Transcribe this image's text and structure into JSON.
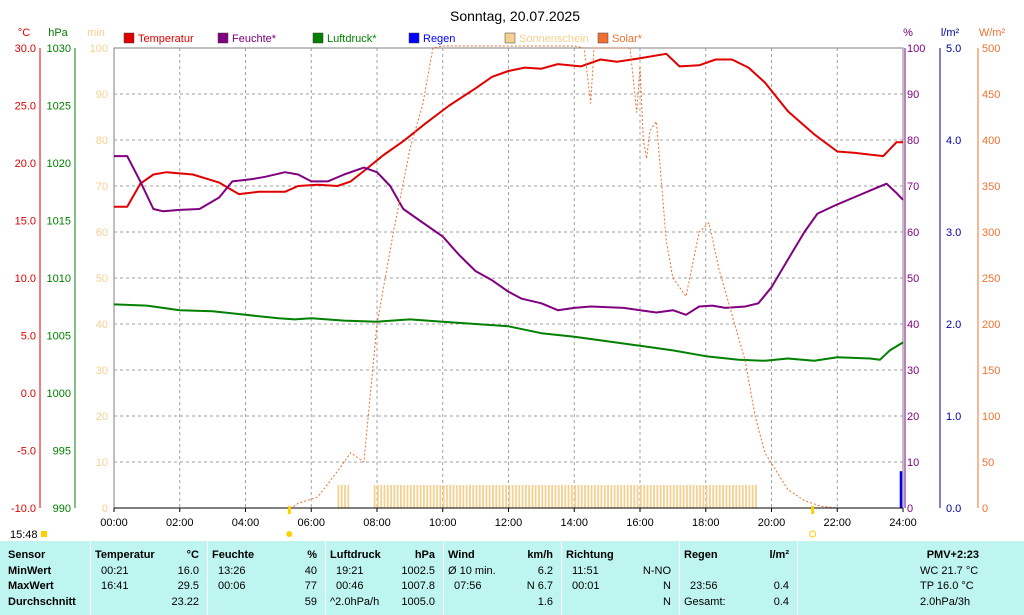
{
  "chart_data": {
    "type": "line",
    "title": "Sonntag, 20.07.2025",
    "x_ticks": [
      "00:00",
      "02:00",
      "04:00",
      "06:00",
      "08:00",
      "10:00",
      "12:00",
      "14:00",
      "16:00",
      "18:00",
      "20:00",
      "22:00",
      "24:00"
    ],
    "axes": {
      "temperature": {
        "unit": "°C",
        "range": [
          -10,
          30
        ],
        "ticks": [
          "30.0",
          "25.0",
          "20.0",
          "15.0",
          "10.0",
          "5.0",
          "0.0",
          "-5.0",
          "-10.0"
        ]
      },
      "pressure": {
        "unit": "hPa",
        "range": [
          990,
          1030
        ],
        "ticks": [
          "1030",
          "1025",
          "1020",
          "1015",
          "1010",
          "1005",
          "1000",
          "995",
          "990"
        ]
      },
      "sunshine": {
        "unit": "min",
        "range": [
          0,
          100
        ],
        "ticks": [
          "100",
          "90",
          "80",
          "70",
          "60",
          "50",
          "40",
          "30",
          "20",
          "10",
          "0"
        ]
      },
      "humidity": {
        "unit": "%",
        "range": [
          0,
          100
        ],
        "ticks": [
          "100",
          "90",
          "80",
          "70",
          "60",
          "50",
          "40",
          "30",
          "20",
          "10",
          "0"
        ]
      },
      "rain": {
        "unit": "l/m²",
        "range": [
          0,
          5
        ],
        "ticks": [
          "5.0",
          "4.0",
          "3.0",
          "2.0",
          "1.0",
          "0.0"
        ]
      },
      "solar": {
        "unit": "W/m²",
        "range": [
          0,
          500
        ],
        "ticks": [
          "500",
          "450",
          "400",
          "350",
          "300",
          "250",
          "200",
          "150",
          "100",
          "50",
          "0"
        ]
      }
    },
    "legend": [
      "Temperatur",
      "Feuchte*",
      "Luftdruck*",
      "Regen",
      "Sonnenschein",
      "Solar*"
    ],
    "series": [
      {
        "name": "Temperatur",
        "axis": "temperature",
        "color": "#e00000",
        "points": [
          [
            0,
            16.2
          ],
          [
            0.4,
            16.2
          ],
          [
            0.8,
            18.2
          ],
          [
            1.2,
            19.0
          ],
          [
            1.6,
            19.2
          ],
          [
            2.4,
            19.0
          ],
          [
            3.2,
            18.3
          ],
          [
            3.8,
            17.3
          ],
          [
            4.4,
            17.5
          ],
          [
            5.2,
            17.5
          ],
          [
            5.6,
            18.0
          ],
          [
            6.2,
            18.1
          ],
          [
            6.8,
            18.0
          ],
          [
            7.2,
            18.4
          ],
          [
            7.6,
            19.3
          ],
          [
            8.2,
            20.7
          ],
          [
            8.8,
            21.9
          ],
          [
            9.5,
            23.5
          ],
          [
            10.2,
            25.0
          ],
          [
            11.0,
            26.5
          ],
          [
            11.5,
            27.5
          ],
          [
            12.0,
            28.0
          ],
          [
            12.5,
            28.3
          ],
          [
            13.0,
            28.2
          ],
          [
            13.5,
            28.6
          ],
          [
            14.2,
            28.4
          ],
          [
            14.8,
            29.0
          ],
          [
            15.3,
            28.8
          ],
          [
            16.0,
            29.1
          ],
          [
            16.8,
            29.5
          ],
          [
            17.2,
            28.4
          ],
          [
            17.8,
            28.5
          ],
          [
            18.3,
            29.0
          ],
          [
            18.8,
            29.0
          ],
          [
            19.3,
            28.3
          ],
          [
            19.8,
            27.0
          ],
          [
            20.5,
            24.5
          ],
          [
            21.3,
            22.5
          ],
          [
            22.0,
            21.0
          ],
          [
            22.5,
            20.9
          ],
          [
            23.4,
            20.6
          ],
          [
            23.8,
            21.8
          ],
          [
            24.0,
            21.8
          ]
        ]
      },
      {
        "name": "Feuchte*",
        "axis": "humidity",
        "color": "#800080",
        "points": [
          [
            0,
            76.5
          ],
          [
            0.4,
            76.5
          ],
          [
            0.8,
            71.0
          ],
          [
            1.2,
            65.0
          ],
          [
            1.5,
            64.5
          ],
          [
            2.0,
            64.8
          ],
          [
            2.6,
            65.0
          ],
          [
            3.2,
            67.5
          ],
          [
            3.6,
            71.0
          ],
          [
            4.2,
            71.5
          ],
          [
            4.6,
            72.0
          ],
          [
            5.2,
            73.0
          ],
          [
            5.6,
            72.5
          ],
          [
            6.0,
            71.0
          ],
          [
            6.5,
            71.0
          ],
          [
            7.0,
            72.5
          ],
          [
            7.6,
            74.0
          ],
          [
            8.0,
            73.0
          ],
          [
            8.4,
            70.0
          ],
          [
            8.8,
            65.0
          ],
          [
            9.3,
            62.5
          ],
          [
            10.0,
            59.0
          ],
          [
            10.5,
            55.0
          ],
          [
            11.0,
            51.5
          ],
          [
            11.5,
            49.5
          ],
          [
            12.0,
            47.0
          ],
          [
            12.4,
            45.5
          ],
          [
            13.0,
            44.5
          ],
          [
            13.5,
            43.0
          ],
          [
            14.0,
            43.5
          ],
          [
            14.5,
            43.8
          ],
          [
            15.5,
            43.5
          ],
          [
            16.0,
            43.0
          ],
          [
            16.5,
            42.5
          ],
          [
            17.0,
            43.0
          ],
          [
            17.4,
            42.0
          ],
          [
            17.8,
            43.8
          ],
          [
            18.2,
            44.0
          ],
          [
            18.6,
            43.5
          ],
          [
            19.2,
            43.8
          ],
          [
            19.6,
            44.5
          ],
          [
            20.0,
            48.0
          ],
          [
            20.5,
            54.0
          ],
          [
            21.0,
            60.0
          ],
          [
            21.4,
            64.0
          ],
          [
            22.0,
            66.0
          ],
          [
            22.5,
            67.5
          ],
          [
            23.0,
            69.0
          ],
          [
            23.5,
            70.5
          ],
          [
            23.8,
            68.5
          ],
          [
            24.0,
            67.0
          ]
        ]
      },
      {
        "name": "Luftdruck*",
        "axis": "pressure",
        "color": "#008000",
        "points": [
          [
            0,
            1007.7
          ],
          [
            1.0,
            1007.6
          ],
          [
            2.0,
            1007.2
          ],
          [
            3.0,
            1007.1
          ],
          [
            4.0,
            1006.8
          ],
          [
            5.0,
            1006.5
          ],
          [
            5.5,
            1006.4
          ],
          [
            6.0,
            1006.5
          ],
          [
            7.0,
            1006.3
          ],
          [
            8.0,
            1006.2
          ],
          [
            9.0,
            1006.4
          ],
          [
            10.0,
            1006.2
          ],
          [
            11.0,
            1006.0
          ],
          [
            12.0,
            1005.8
          ],
          [
            13.0,
            1005.2
          ],
          [
            14.0,
            1004.9
          ],
          [
            15.0,
            1004.5
          ],
          [
            16.0,
            1004.1
          ],
          [
            17.0,
            1003.7
          ],
          [
            18.0,
            1003.2
          ],
          [
            19.0,
            1002.9
          ],
          [
            19.8,
            1002.8
          ],
          [
            20.5,
            1003.0
          ],
          [
            21.3,
            1002.8
          ],
          [
            22.0,
            1003.1
          ],
          [
            23.0,
            1003.0
          ],
          [
            23.3,
            1002.9
          ],
          [
            23.6,
            1003.7
          ],
          [
            24.0,
            1004.4
          ]
        ]
      },
      {
        "name": "Solar*",
        "axis": "solar",
        "color": "#f07030",
        "dashed": true,
        "points": [
          [
            0,
            0
          ],
          [
            5.4,
            0
          ],
          [
            5.6,
            5
          ],
          [
            6.2,
            12
          ],
          [
            6.8,
            40
          ],
          [
            7.2,
            60
          ],
          [
            7.6,
            50
          ],
          [
            8.0,
            200
          ],
          [
            8.5,
            300
          ],
          [
            9.0,
            390
          ],
          [
            9.4,
            440
          ],
          [
            9.7,
            500
          ],
          [
            10.0,
            520
          ],
          [
            13.0,
            520
          ],
          [
            14.0,
            510
          ],
          [
            14.3,
            500
          ],
          [
            14.5,
            440
          ],
          [
            14.6,
            500
          ],
          [
            15.7,
            500
          ],
          [
            15.9,
            430
          ],
          [
            16.0,
            480
          ],
          [
            16.1,
            400
          ],
          [
            16.2,
            380
          ],
          [
            16.3,
            410
          ],
          [
            16.5,
            420
          ],
          [
            16.8,
            290
          ],
          [
            17.0,
            250
          ],
          [
            17.4,
            230
          ],
          [
            17.8,
            300
          ],
          [
            18.1,
            310
          ],
          [
            18.4,
            260
          ],
          [
            18.8,
            210
          ],
          [
            19.2,
            160
          ],
          [
            19.5,
            100
          ],
          [
            19.8,
            60
          ],
          [
            20.5,
            20
          ],
          [
            21.0,
            8
          ],
          [
            21.5,
            2
          ],
          [
            22.0,
            0
          ],
          [
            24.0,
            0
          ]
        ]
      },
      {
        "name": "Sonnenschein",
        "axis": "sunshine",
        "color": "#f5d090",
        "bars": true,
        "points": [
          [
            6.8,
            5.0
          ],
          [
            7.8,
            5.0
          ],
          [
            19.6,
            5.0
          ]
        ]
      },
      {
        "name": "Regen",
        "axis": "rain",
        "color": "#0000ff",
        "bars": true,
        "points": [
          [
            23.9,
            0.4
          ]
        ]
      }
    ],
    "markers": {
      "sunrise": "05:20",
      "sunset": "21:15"
    },
    "time_label": "15:48"
  },
  "stats": {
    "sensor": {
      "title": "Sensor",
      "rows": [
        "MinWert",
        "MaxWert",
        "Durchschnitt"
      ]
    },
    "temperature": {
      "title": "Temperatur",
      "unit": "°C",
      "rows": [
        [
          "00:21",
          "16.0"
        ],
        [
          "16:41",
          "29.5"
        ],
        [
          "",
          "23.22"
        ]
      ]
    },
    "humidity": {
      "title": "Feuchte",
      "unit": "%",
      "rows": [
        [
          "13:26",
          "40"
        ],
        [
          "00:06",
          "77"
        ],
        [
          "",
          "59"
        ]
      ]
    },
    "pressure": {
      "title": "Luftdruck",
      "unit": "hPa",
      "rows": [
        [
          "19:21",
          "1002.5"
        ],
        [
          "00:46",
          "1007.8"
        ],
        [
          "^2.0hPa/h",
          "1005.0"
        ]
      ]
    },
    "wind": {
      "title": "Wind",
      "unit": "km/h",
      "rows": [
        [
          "Ø 10 min.",
          "6.2"
        ],
        [
          "07:56",
          "N 6.7"
        ],
        [
          "",
          "1.6"
        ]
      ]
    },
    "direction": {
      "title": "Richtung",
      "rows": [
        [
          "11:51",
          "N-NO"
        ],
        [
          "00:01",
          "N"
        ],
        [
          "",
          "N"
        ]
      ]
    },
    "rain": {
      "title": "Regen",
      "unit": "l/m²",
      "rows": [
        [
          "",
          ""
        ],
        [
          "23:56",
          "0.4"
        ],
        [
          "Gesamt:",
          "0.4"
        ]
      ]
    },
    "pmv": {
      "title": "PMV+2:23",
      "rows": [
        "WC 21.7 °C",
        "TP 16.0 °C",
        "2.0hPa/3h"
      ]
    }
  }
}
